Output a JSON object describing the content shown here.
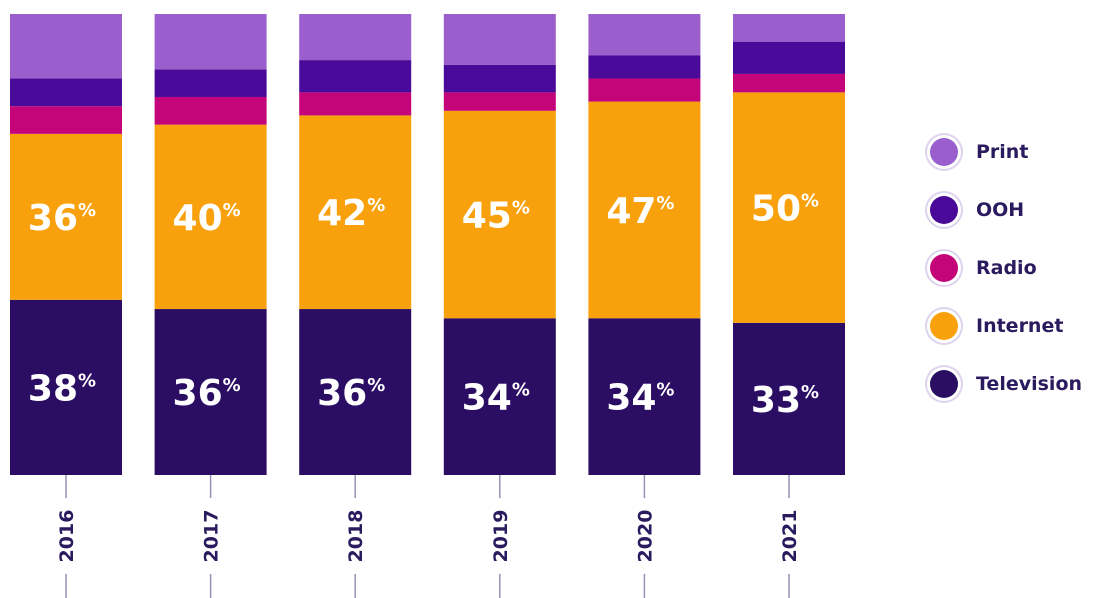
{
  "chart_data": {
    "type": "bar",
    "stacked": true,
    "normalized_percent": true,
    "categories": [
      "2016",
      "2017",
      "2018",
      "2019",
      "2020",
      "2021"
    ],
    "series": [
      {
        "name": "Television",
        "color": "#2b0e63",
        "values": [
          38,
          36,
          36,
          34,
          34,
          33
        ],
        "labeled": true
      },
      {
        "name": "Internet",
        "color": "#f8a10c",
        "values": [
          36,
          40,
          42,
          45,
          47,
          50
        ],
        "labeled": true
      },
      {
        "name": "Radio",
        "color": "#c4057a",
        "values": [
          6,
          6,
          5,
          4,
          5,
          4
        ],
        "labeled": false
      },
      {
        "name": "OOH",
        "color": "#4a0a99",
        "values": [
          6,
          6,
          7,
          6,
          5,
          7
        ],
        "labeled": false
      },
      {
        "name": "Print",
        "color": "#9a5fcc",
        "values": [
          14,
          12,
          10,
          11,
          9,
          6
        ],
        "labeled": false
      }
    ],
    "ylim": [
      0,
      100
    ],
    "percent_suffix": "%",
    "legend_position": "right",
    "legend_order": [
      "Print",
      "OOH",
      "Radio",
      "Internet",
      "Television"
    ],
    "grid": false
  }
}
